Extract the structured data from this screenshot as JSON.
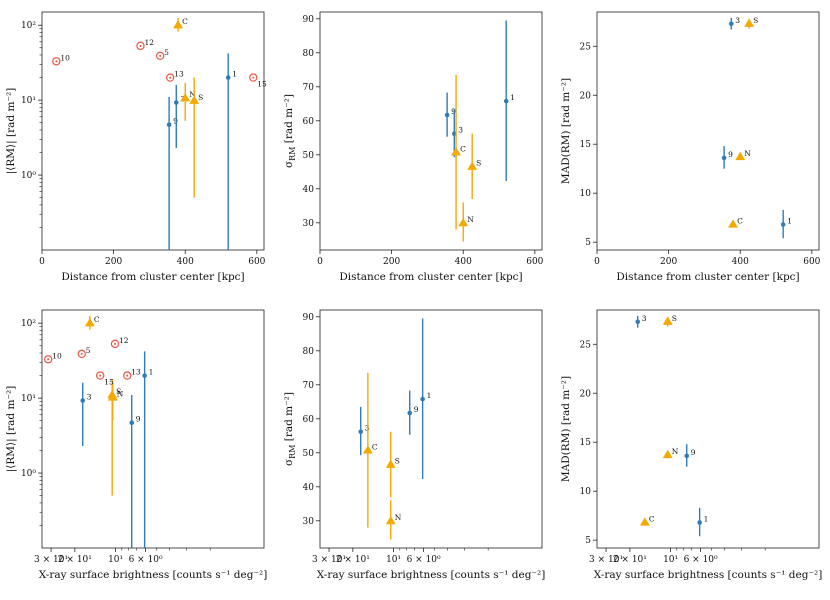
{
  "colors": {
    "blue": "#2f7cb8",
    "orange": "#f5a800",
    "red": "#e8553f",
    "axis": "#222222"
  },
  "chart_data": [
    {
      "id": "p1",
      "type": "scatter",
      "xscale": "linear",
      "yscale": "log",
      "xlim": [
        0,
        620
      ],
      "ylim": [
        0.1,
        150
      ],
      "xticks": [
        {
          "v": 0,
          "t": "0"
        },
        {
          "v": 200,
          "t": "200"
        },
        {
          "v": 400,
          "t": "400"
        },
        {
          "v": 600,
          "t": "600"
        }
      ],
      "yticks": [
        {
          "v": 1,
          "t": "10⁰"
        },
        {
          "v": 10,
          "t": "10¹"
        },
        {
          "v": 100,
          "t": "10²"
        }
      ],
      "xlabel": "Distance from cluster center [kpc]",
      "ylabel": "|⟨RM⟩| [rad m⁻²]",
      "series": [
        {
          "name": "blue",
          "marker": "dot",
          "color": "blue",
          "points": [
            {
              "x": 355,
              "y": 4.7,
              "lo": 0.1,
              "hi": 11,
              "label": "9"
            },
            {
              "x": 375,
              "y": 9.3,
              "lo": 2.3,
              "hi": 16,
              "label": "3"
            },
            {
              "x": 520,
              "y": 20,
              "lo": 0.1,
              "hi": 42,
              "label": "1"
            }
          ]
        },
        {
          "name": "orange",
          "marker": "triangle",
          "color": "orange",
          "points": [
            {
              "x": 380,
              "y": 100,
              "lo": 82,
              "hi": 125,
              "label": "C"
            },
            {
              "x": 400,
              "y": 10.6,
              "lo": 5.3,
              "hi": 17,
              "label": "N"
            },
            {
              "x": 425,
              "y": 9.8,
              "lo": 0.5,
              "hi": 20,
              "label": "S"
            }
          ]
        },
        {
          "name": "red",
          "marker": "circle",
          "color": "red",
          "points": [
            {
              "x": 40,
              "y": 33,
              "label": "10"
            },
            {
              "x": 275,
              "y": 53,
              "label": "12"
            },
            {
              "x": 330,
              "y": 39,
              "label": "5"
            },
            {
              "x": 358,
              "y": 20,
              "label": "13"
            },
            {
              "x": 590,
              "y": 20,
              "label": "15",
              "labelPos": "below"
            }
          ]
        }
      ]
    },
    {
      "id": "p2",
      "type": "scatter",
      "xscale": "linear",
      "yscale": "linear",
      "xlim": [
        0,
        620
      ],
      "ylim": [
        22,
        92
      ],
      "xticks": [
        {
          "v": 0,
          "t": "0"
        },
        {
          "v": 200,
          "t": "200"
        },
        {
          "v": 400,
          "t": "400"
        },
        {
          "v": 600,
          "t": "600"
        }
      ],
      "yticks": [
        {
          "v": 30,
          "t": "30"
        },
        {
          "v": 40,
          "t": "40"
        },
        {
          "v": 50,
          "t": "50"
        },
        {
          "v": 60,
          "t": "60"
        },
        {
          "v": 70,
          "t": "70"
        },
        {
          "v": 80,
          "t": "80"
        },
        {
          "v": 90,
          "t": "90"
        }
      ],
      "xlabel": "Distance from cluster center [kpc]",
      "ylabel": "σ_RM [rad m⁻²]",
      "series": [
        {
          "name": "blue",
          "marker": "dot",
          "color": "blue",
          "points": [
            {
              "x": 355,
              "y": 61.7,
              "lo": 55.3,
              "hi": 68.3,
              "label": "9"
            },
            {
              "x": 375,
              "y": 56.2,
              "lo": 49.3,
              "hi": 63.5,
              "label": "3"
            },
            {
              "x": 520,
              "y": 65.8,
              "lo": 42.3,
              "hi": 89.5,
              "label": "1"
            }
          ]
        },
        {
          "name": "orange",
          "marker": "triangle",
          "color": "orange",
          "points": [
            {
              "x": 380,
              "y": 50.7,
              "lo": 28,
              "hi": 73.5,
              "label": "C"
            },
            {
              "x": 400,
              "y": 29.9,
              "lo": 24.5,
              "hi": 36,
              "label": "N"
            },
            {
              "x": 425,
              "y": 46.5,
              "lo": 37,
              "hi": 56.2,
              "label": "S"
            }
          ]
        }
      ]
    },
    {
      "id": "p3",
      "type": "scatter",
      "xscale": "linear",
      "yscale": "linear",
      "xlim": [
        0,
        620
      ],
      "ylim": [
        4.2,
        28.5
      ],
      "xticks": [
        {
          "v": 0,
          "t": "0"
        },
        {
          "v": 200,
          "t": "200"
        },
        {
          "v": 400,
          "t": "400"
        },
        {
          "v": 600,
          "t": "600"
        }
      ],
      "yticks": [
        {
          "v": 5,
          "t": "5"
        },
        {
          "v": 10,
          "t": "10"
        },
        {
          "v": 15,
          "t": "15"
        },
        {
          "v": 20,
          "t": "20"
        },
        {
          "v": 25,
          "t": "25"
        }
      ],
      "xlabel": "Distance from cluster center [kpc]",
      "ylabel": "MAD(RM) [rad m⁻²]",
      "series": [
        {
          "name": "blue",
          "marker": "dot",
          "color": "blue",
          "points": [
            {
              "x": 355,
              "y": 13.6,
              "lo": 12.5,
              "hi": 14.8,
              "label": "9"
            },
            {
              "x": 375,
              "y": 27.3,
              "lo": 26.7,
              "hi": 27.9,
              "label": "3"
            },
            {
              "x": 520,
              "y": 6.8,
              "lo": 5.4,
              "hi": 8.3,
              "label": "1"
            }
          ]
        },
        {
          "name": "orange",
          "marker": "triangle",
          "color": "orange",
          "points": [
            {
              "x": 380,
              "y": 6.8,
              "label": "C"
            },
            {
              "x": 400,
              "y": 13.7,
              "label": "N"
            },
            {
              "x": 425,
              "y": 27.3,
              "lo": 26.8,
              "hi": 27.8,
              "label": "S"
            }
          ]
        }
      ]
    },
    {
      "id": "p4",
      "type": "scatter",
      "xscale": "log-reversed",
      "yscale": "log",
      "xlim": [
        35,
        0.8
      ],
      "ylim": [
        0.1,
        150
      ],
      "xticks": [
        {
          "v": 30,
          "t": "3 × 10¹"
        },
        {
          "v": 20,
          "t": "2 × 10¹"
        },
        {
          "v": 10,
          "t": "10¹"
        },
        {
          "v": 6,
          "t": "6 × 10⁰"
        }
      ],
      "minorxticks": [
        9,
        8,
        7,
        5,
        4,
        3,
        2
      ],
      "yticks": [
        {
          "v": 1,
          "t": "10⁰"
        },
        {
          "v": 10,
          "t": "10¹"
        },
        {
          "v": 100,
          "t": "10²"
        }
      ],
      "xlabel": "X-ray surface brightness [counts s⁻¹ deg⁻²]",
      "ylabel": "|⟨RM⟩| [rad m⁻²]",
      "series": [
        {
          "name": "blue",
          "marker": "dot",
          "color": "blue",
          "points": [
            {
              "x": 17.5,
              "y": 9.3,
              "lo": 2.3,
              "hi": 16,
              "label": "3"
            },
            {
              "x": 7.6,
              "y": 4.7,
              "lo": 0.1,
              "hi": 11,
              "label": "9"
            },
            {
              "x": 6.1,
              "y": 20,
              "lo": 0.1,
              "hi": 42,
              "label": "1"
            }
          ]
        },
        {
          "name": "orange",
          "marker": "triangle",
          "color": "orange",
          "points": [
            {
              "x": 15.5,
              "y": 100,
              "lo": 82,
              "hi": 125,
              "label": "C"
            },
            {
              "x": 10.6,
              "y": 11,
              "lo": 0.5,
              "hi": 18,
              "label": "S"
            },
            {
              "x": 10.5,
              "y": 10.2,
              "lo": 5,
              "hi": 16,
              "label": "N"
            }
          ]
        },
        {
          "name": "red",
          "marker": "circle",
          "color": "red",
          "points": [
            {
              "x": 31.5,
              "y": 33,
              "label": "10"
            },
            {
              "x": 17.8,
              "y": 39,
              "label": "5"
            },
            {
              "x": 10.1,
              "y": 53,
              "label": "12"
            },
            {
              "x": 13,
              "y": 20,
              "label": "15",
              "labelPos": "below"
            },
            {
              "x": 8.2,
              "y": 20,
              "label": "13"
            }
          ]
        }
      ]
    },
    {
      "id": "p5",
      "type": "scatter",
      "xscale": "log-reversed",
      "yscale": "linear",
      "xlim": [
        35,
        0.8
      ],
      "ylim": [
        22,
        92
      ],
      "xticks": [
        {
          "v": 30,
          "t": "3 × 10¹"
        },
        {
          "v": 20,
          "t": "2 × 10¹"
        },
        {
          "v": 10,
          "t": "10¹"
        },
        {
          "v": 6,
          "t": "6 × 10⁰"
        }
      ],
      "minorxticks": [
        9,
        8,
        7,
        5,
        4,
        3,
        2
      ],
      "yticks": [
        {
          "v": 30,
          "t": "30"
        },
        {
          "v": 40,
          "t": "40"
        },
        {
          "v": 50,
          "t": "50"
        },
        {
          "v": 60,
          "t": "60"
        },
        {
          "v": 70,
          "t": "70"
        },
        {
          "v": 80,
          "t": "80"
        },
        {
          "v": 90,
          "t": "90"
        }
      ],
      "xlabel": "X-ray surface brightness [counts s⁻¹ deg⁻²]",
      "ylabel": "σ_RM [rad m⁻²]",
      "series": [
        {
          "name": "blue",
          "marker": "dot",
          "color": "blue",
          "points": [
            {
              "x": 17.5,
              "y": 56.2,
              "lo": 49.3,
              "hi": 63.5,
              "label": "3"
            },
            {
              "x": 7.6,
              "y": 61.7,
              "lo": 55.3,
              "hi": 68.3,
              "label": "9"
            },
            {
              "x": 6.1,
              "y": 65.8,
              "lo": 42.3,
              "hi": 89.5,
              "label": "1"
            }
          ]
        },
        {
          "name": "orange",
          "marker": "triangle",
          "color": "orange",
          "points": [
            {
              "x": 15.5,
              "y": 50.7,
              "lo": 28,
              "hi": 73.5,
              "label": "C"
            },
            {
              "x": 10.5,
              "y": 46.5,
              "lo": 37,
              "hi": 56.2,
              "label": "S"
            },
            {
              "x": 10.5,
              "y": 29.9,
              "lo": 24.5,
              "hi": 36,
              "label": "N"
            }
          ]
        }
      ]
    },
    {
      "id": "p6",
      "type": "scatter",
      "xscale": "log-reversed",
      "yscale": "linear",
      "xlim": [
        35,
        0.8
      ],
      "ylim": [
        4.2,
        28.5
      ],
      "xticks": [
        {
          "v": 30,
          "t": "3 × 10¹"
        },
        {
          "v": 20,
          "t": "2 × 10¹"
        },
        {
          "v": 10,
          "t": "10¹"
        },
        {
          "v": 6,
          "t": "6 × 10⁰"
        }
      ],
      "minorxticks": [
        9,
        8,
        7,
        5,
        4,
        3,
        2
      ],
      "yticks": [
        {
          "v": 5,
          "t": "5"
        },
        {
          "v": 10,
          "t": "10"
        },
        {
          "v": 15,
          "t": "15"
        },
        {
          "v": 20,
          "t": "20"
        },
        {
          "v": 25,
          "t": "25"
        }
      ],
      "xlabel": "X-ray surface brightness [counts s⁻¹ deg⁻²]",
      "ylabel": "MAD(RM) [rad m⁻²]",
      "series": [
        {
          "name": "blue",
          "marker": "dot",
          "color": "blue",
          "points": [
            {
              "x": 17.5,
              "y": 27.3,
              "lo": 26.7,
              "hi": 27.9,
              "label": "3"
            },
            {
              "x": 7.6,
              "y": 13.6,
              "lo": 12.5,
              "hi": 14.8,
              "label": "9"
            },
            {
              "x": 6.1,
              "y": 6.8,
              "lo": 5.4,
              "hi": 8.3,
              "label": "1"
            }
          ]
        },
        {
          "name": "orange",
          "marker": "triangle",
          "color": "orange",
          "points": [
            {
              "x": 15.5,
              "y": 6.8,
              "label": "C"
            },
            {
              "x": 10.5,
              "y": 13.7,
              "label": "N"
            },
            {
              "x": 10.5,
              "y": 27.3,
              "lo": 26.8,
              "hi": 27.8,
              "label": "S"
            }
          ]
        }
      ]
    }
  ]
}
